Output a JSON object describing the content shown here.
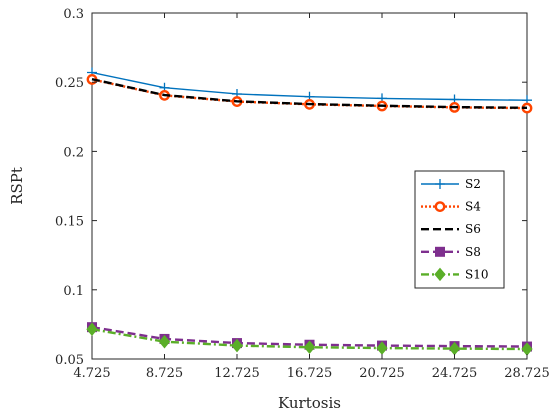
{
  "chart_data": {
    "type": "line",
    "xlabel": "Kurtosis",
    "ylabel": "RSPt",
    "x": [
      4.725,
      8.725,
      12.725,
      16.725,
      20.725,
      24.725,
      28.725
    ],
    "x_tick_labels": [
      "4.725",
      "8.725",
      "12.725",
      "16.725",
      "20.725",
      "24.725",
      "28.725"
    ],
    "xlim": [
      4.725,
      28.725
    ],
    "ylim": [
      0.05,
      0.3
    ],
    "y_ticks": [
      0.05,
      0.1,
      0.15,
      0.2,
      0.25,
      0.3
    ],
    "y_tick_labels": [
      "0.05",
      "0.1",
      "0.15",
      "0.2",
      "0.25",
      "0.3"
    ],
    "grid": false,
    "legend_position": "right",
    "series": [
      {
        "name": "S2",
        "color": "#0072BD",
        "style": "solid",
        "marker": "plus",
        "values": [
          0.257,
          0.246,
          0.2415,
          0.2395,
          0.2383,
          0.2375,
          0.237
        ]
      },
      {
        "name": "S4",
        "color": "#FF4500",
        "style": "dotted",
        "marker": "circle",
        "values": [
          0.252,
          0.2405,
          0.236,
          0.234,
          0.2328,
          0.2318,
          0.2313
        ]
      },
      {
        "name": "S6",
        "color": "#000000",
        "style": "dashed",
        "marker": "none",
        "values": [
          0.2522,
          0.2407,
          0.2362,
          0.2342,
          0.233,
          0.232,
          0.2315
        ]
      },
      {
        "name": "S8",
        "color": "#7E2F8E",
        "style": "dashed",
        "marker": "square",
        "values": [
          0.073,
          0.0645,
          0.0615,
          0.0603,
          0.0597,
          0.0593,
          0.059
        ]
      },
      {
        "name": "S10",
        "color": "#5AAE28",
        "style": "dashdot",
        "marker": "diamond",
        "values": [
          0.0715,
          0.0625,
          0.0597,
          0.0585,
          0.0579,
          0.0575,
          0.0572
        ]
      }
    ]
  }
}
